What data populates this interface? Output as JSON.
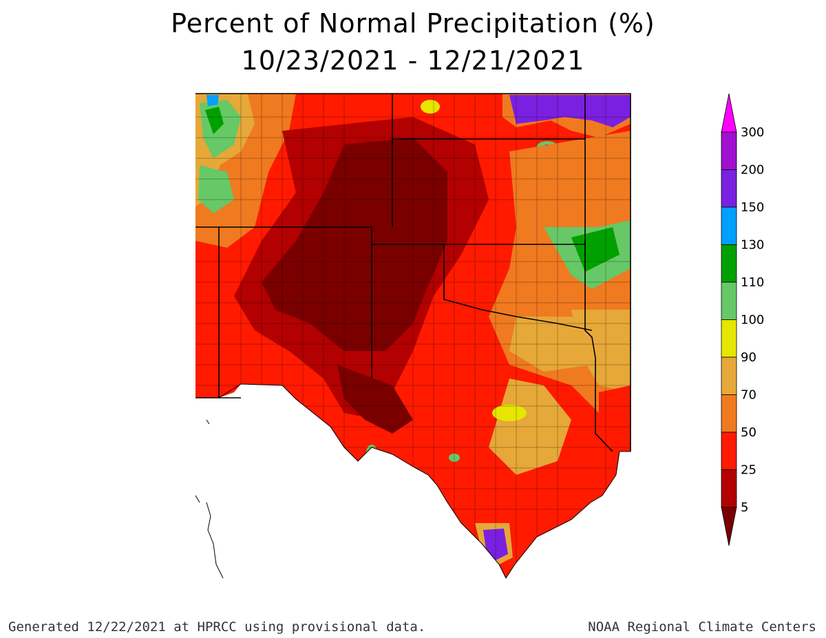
{
  "title": {
    "line1": "Percent of Normal Precipitation (%)",
    "line2": "10/23/2021 - 12/21/2021"
  },
  "colorbar": {
    "labels": [
      "5",
      "25",
      "50",
      "70",
      "90",
      "100",
      "110",
      "130",
      "150",
      "200",
      "300"
    ],
    "colors": [
      "#7a0000",
      "#b30000",
      "#ff1a00",
      "#f07a20",
      "#e6a838",
      "#e6e600",
      "#66c866",
      "#00a000",
      "#00a0ff",
      "#7a20e0",
      "#a010d0",
      "#ff00ff"
    ]
  },
  "footer": {
    "left": "Generated 12/22/2021 at HPRCC using provisional data.",
    "right": "NOAA Regional Climate Centers"
  }
}
